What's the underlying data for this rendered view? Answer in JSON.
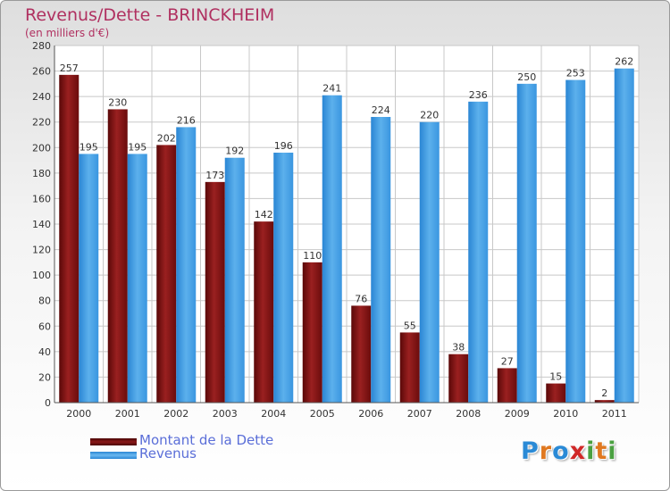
{
  "header": {
    "title": "Revenus/Dette - BRINCKHEIM",
    "subtitle": "(en milliers d'€)"
  },
  "chart_data": {
    "type": "bar",
    "title": "Revenus/Dette - BRINCKHEIM",
    "subtitle": "(en milliers d'€)",
    "categories": [
      "2000",
      "2001",
      "2002",
      "2003",
      "2004",
      "2005",
      "2006",
      "2007",
      "2008",
      "2009",
      "2010",
      "2011"
    ],
    "series": [
      {
        "name": "Montant de la Dette",
        "color": "#7a1010",
        "values": [
          257,
          230,
          202,
          173,
          142,
          110,
          76,
          55,
          38,
          27,
          15,
          2
        ]
      },
      {
        "name": "Revenus",
        "color": "#3a96e0",
        "values": [
          195,
          195,
          216,
          192,
          196,
          241,
          224,
          220,
          236,
          250,
          253,
          262
        ]
      }
    ],
    "yticks": [
      0,
      20,
      40,
      60,
      80,
      100,
      120,
      140,
      160,
      180,
      200,
      220,
      240,
      260,
      280
    ],
    "ylim": [
      0,
      280
    ],
    "grid": true,
    "legend_position": "bottom-left"
  },
  "legend": {
    "items": [
      {
        "label": "Montant de la Dette",
        "color": "#6e0c0c"
      },
      {
        "label": "Revenus",
        "color": "#4aa0e6"
      }
    ]
  },
  "logo": {
    "text": "Proxiti",
    "letters": [
      "P",
      "r",
      "o",
      "x",
      "i",
      "t",
      "i"
    ],
    "colors": [
      "#2a8ad6",
      "#e07820",
      "#2a8ad6",
      "#d02828",
      "#4aa040",
      "#e07820",
      "#4aa040"
    ]
  }
}
